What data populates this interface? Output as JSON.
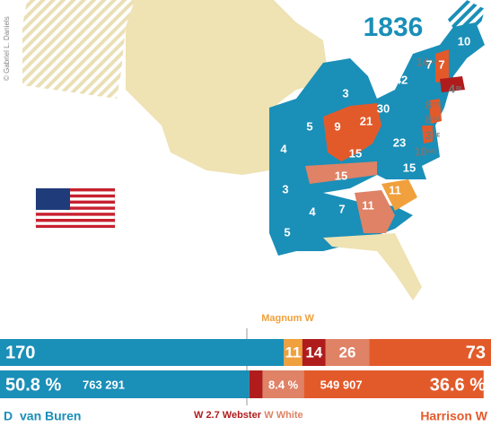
{
  "year": "1836",
  "credit": "© Gabriel L. Daniels",
  "state_labels": [
    {
      "text": "10"
    },
    {
      "text": "7"
    },
    {
      "text": "42"
    },
    {
      "text": "14",
      "sub": "MA"
    },
    {
      "text": "4",
      "sub": "RI"
    },
    {
      "text": "8",
      "sub": "CT"
    },
    {
      "text": "8",
      "sub": "NJ"
    },
    {
      "text": "3",
      "sub": "DE"
    },
    {
      "text": "10",
      "sub": "MD"
    },
    {
      "text": "3"
    },
    {
      "text": "30"
    },
    {
      "text": "21"
    },
    {
      "text": "9"
    },
    {
      "text": "5"
    },
    {
      "text": "4"
    },
    {
      "text": "15"
    },
    {
      "text": "23"
    },
    {
      "text": "15"
    },
    {
      "text": "15"
    },
    {
      "text": "11"
    },
    {
      "text": "3"
    },
    {
      "text": "4"
    },
    {
      "text": "7"
    },
    {
      "text": "11"
    },
    {
      "text": "5"
    },
    {
      "text": "7"
    }
  ],
  "candidates": [
    {
      "party": "D",
      "name": "van Buren",
      "color": "#1a8fb8",
      "electoral": 170,
      "percent": 50.8,
      "percent_label": "50.8 %",
      "votes": "763 291"
    },
    {
      "label": "Magnum W",
      "color": "#f0a03c",
      "electoral": 11
    },
    {
      "label": "W 2.7 Webster",
      "color": "#b01c1c",
      "electoral": 14,
      "percent": 2.7
    },
    {
      "label": "W White",
      "color": "#df8266",
      "electoral": 26,
      "percent": 8.4,
      "percent_label": "8.4 %"
    },
    {
      "label": "Harrison W",
      "color": "#e35a2a",
      "electoral": 73,
      "percent": 36.6,
      "percent_label": "36.6 %",
      "votes": "549 907"
    }
  ]
}
